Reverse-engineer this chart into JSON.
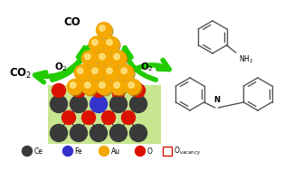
{
  "bg_color": "#ffffff",
  "support_bg": "#c8e690",
  "ce_color": "#3a3a3a",
  "fe_color": "#3333cc",
  "au_color": "#f5a800",
  "o_color": "#dd1100",
  "arrow_color": "#22cc00",
  "legend_items": [
    {
      "label": "Ce",
      "color": "#3a3a3a",
      "type": "circle"
    },
    {
      "label": "Fe",
      "color": "#3333cc",
      "type": "circle"
    },
    {
      "label": "Au",
      "color": "#f5a800",
      "type": "circle"
    },
    {
      "label": "O",
      "color": "#dd1100",
      "type": "circle"
    },
    {
      "label": "O",
      "sub": "vacancy",
      "color": "#dd1100",
      "type": "square"
    }
  ],
  "figsize": [
    3.24,
    1.89
  ],
  "dpi": 100
}
